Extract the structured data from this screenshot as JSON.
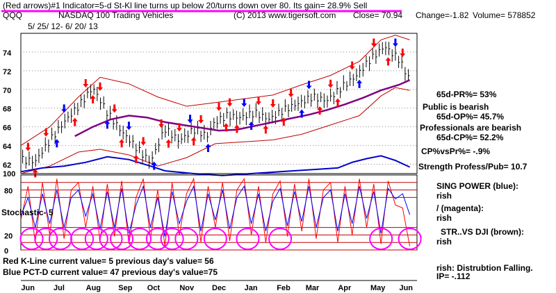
{
  "header": {
    "banner": "(Red arrows)#1  Indicator=5-d St-Kl line turns up below 20/turns down over 80.  Its gain= 28.9% Sell",
    "symbol": "QQQ",
    "name": "NASDAQ 100 Trading Vehicles",
    "copyright": "(C) 2013 www.tigersoft.com",
    "close": "Close=   70.94",
    "change": "Change=-1.82",
    "volume": "Volume=  578852",
    "date_range": "5/ 25/ 12-  6/ 20/ 13"
  },
  "side_notes": [
    "65d-PR%= 53%",
    "Public is bearish",
    "65d-OP%= 45.7%",
    "Professionals are bearish",
    "65d-CP%= 52.2%",
    "CP%vsPr%= -.9%",
    "Strength Profess/Pub= 10.7",
    "SING POWER (blue):",
    "rish",
    "/ (magenta):",
    "rish",
    "STR..VS DJI (brown):",
    "rish",
    "rish:  Distrubtion Falling.",
    "IP= -.112"
  ],
  "stochastic_label": "Stochastic- 5",
  "bottom_notes": [
    "Red K-Line current value= 5  previous day's value= 56",
    "Blue PCT-D current value= 47  previous day's value=75"
  ],
  "chart_data": [
    {
      "type": "candlestick",
      "yticks": [
        62,
        64,
        66,
        68,
        70,
        72,
        74
      ],
      "ylim": [
        61,
        76
      ],
      "series": [
        {
          "name": "",
          "color": "#000000",
          "x": [
            0,
            4,
            8,
            12,
            16,
            20,
            24,
            28,
            32,
            36,
            40,
            44,
            48,
            52
          ],
          "values": [
            62.5,
            62.3,
            64.5,
            66.5,
            68.2,
            70.2,
            67.5,
            65.5,
            63.8,
            62.2,
            65.8,
            64.5,
            65.7,
            65.0
          ]
        },
        {
          "name": "",
          "color": "#000000",
          "x": [
            53,
            57,
            61,
            65,
            69,
            73,
            77,
            81,
            85,
            89,
            93,
            97,
            101,
            105,
            108
          ],
          "values": [
            66.2,
            67.2,
            67.0,
            67.5,
            66.8,
            67.8,
            68.5,
            69.2,
            68.8,
            70.2,
            71.4,
            73.2,
            74.6,
            73.2,
            71.0
          ]
        }
      ],
      "ma_series": [
        {
          "name": "",
          "color": "#800080",
          "x": [
            15,
            20,
            25,
            30,
            35,
            40,
            45,
            50,
            55,
            60,
            65,
            70,
            75,
            80,
            85,
            90,
            95,
            100,
            105,
            108
          ],
          "values": [
            65.0,
            66.0,
            66.8,
            67.2,
            67.0,
            66.5,
            66.2,
            65.9,
            65.6,
            65.7,
            66.1,
            66.5,
            66.9,
            67.3,
            67.8,
            68.4,
            69.1,
            69.9,
            70.5,
            71.0
          ]
        },
        {
          "name": "",
          "color": "#c00000",
          "x": [
            0,
            8,
            16,
            22,
            30,
            38,
            46,
            54,
            62,
            70,
            78,
            86,
            94,
            100,
            104,
            108
          ],
          "values": [
            64.0,
            66.0,
            69.2,
            71.3,
            70.6,
            69.2,
            68.2,
            68.6,
            69.0,
            69.4,
            70.5,
            71.5,
            73.0,
            75.3,
            75.8,
            75.3
          ]
        },
        {
          "name": "",
          "color": "#c00000",
          "x": [
            0,
            8,
            16,
            22,
            30,
            38,
            46,
            54,
            62,
            70,
            78,
            86,
            94,
            100,
            104,
            108
          ],
          "values": [
            61.0,
            61.8,
            63.3,
            63.6,
            63.0,
            61.8,
            62.7,
            64.2,
            64.4,
            64.6,
            65.2,
            66.2,
            67.2,
            69.3,
            70.2,
            69.9
          ]
        },
        {
          "name": "",
          "color": "#0000cc",
          "x": [
            0,
            6,
            12,
            18,
            24,
            30,
            36,
            40,
            48,
            56,
            64,
            72,
            80,
            88,
            92,
            96,
            100,
            104,
            108
          ],
          "values": [
            61.2,
            61.6,
            61.8,
            62.2,
            62.8,
            62.5,
            61.8,
            61.3,
            61.0,
            60.8,
            61.0,
            61.2,
            61.4,
            61.6,
            62.2,
            62.6,
            62.9,
            62.4,
            61.7
          ]
        }
      ],
      "signals_up": [
        4,
        10,
        15,
        20,
        24,
        28,
        32,
        37,
        41,
        48,
        52,
        57,
        60,
        64,
        68,
        73,
        78,
        83,
        88,
        94,
        102
      ],
      "signals_down": [
        2,
        7,
        12,
        18,
        22,
        26,
        30,
        34,
        39,
        44,
        47,
        50,
        55,
        58,
        62,
        66,
        70,
        75,
        80,
        86,
        92,
        98,
        104,
        106
      ]
    },
    {
      "type": "line",
      "yticks": [
        0,
        20,
        80
      ],
      "ylim": [
        0,
        100
      ],
      "top_label": "100",
      "series": [
        {
          "name": "Red K-Line",
          "color": "#ff0000",
          "x": [
            0,
            2,
            4,
            6,
            8,
            10,
            12,
            14,
            16,
            18,
            20,
            22,
            24,
            26,
            28,
            30,
            32,
            34,
            36,
            38,
            40,
            42,
            44,
            46,
            48,
            50,
            52,
            54,
            56,
            58,
            60,
            62,
            64,
            66,
            68,
            70,
            72,
            74,
            76,
            78,
            80,
            82,
            84,
            86,
            88,
            90,
            92,
            94,
            96,
            98,
            100,
            102,
            104,
            106,
            108
          ],
          "values": [
            40,
            85,
            10,
            90,
            20,
            95,
            15,
            80,
            90,
            30,
            85,
            12,
            88,
            18,
            92,
            8,
            70,
            95,
            15,
            80,
            5,
            90,
            20,
            75,
            95,
            10,
            85,
            30,
            90,
            12,
            80,
            95,
            20,
            85,
            10,
            75,
            92,
            18,
            88,
            25,
            95,
            15,
            80,
            90,
            10,
            85,
            20,
            95,
            30,
            88,
            8,
            92,
            60,
            56,
            5
          ]
        },
        {
          "name": "Blue PCT-D",
          "color": "#0000ff",
          "x": [
            0,
            2,
            4,
            6,
            8,
            10,
            12,
            14,
            16,
            18,
            20,
            22,
            24,
            26,
            28,
            30,
            32,
            34,
            36,
            38,
            40,
            42,
            44,
            46,
            48,
            50,
            52,
            54,
            56,
            58,
            60,
            62,
            64,
            66,
            68,
            70,
            72,
            74,
            76,
            78,
            80,
            82,
            84,
            86,
            88,
            90,
            92,
            94,
            96,
            98,
            100,
            102,
            104,
            106,
            108
          ],
          "values": [
            45,
            70,
            30,
            75,
            35,
            80,
            30,
            70,
            80,
            45,
            75,
            28,
            78,
            30,
            82,
            22,
            60,
            85,
            30,
            70,
            18,
            78,
            35,
            65,
            85,
            25,
            75,
            40,
            80,
            28,
            70,
            85,
            35,
            75,
            25,
            65,
            82,
            32,
            78,
            38,
            85,
            30,
            70,
            80,
            25,
            75,
            35,
            85,
            42,
            78,
            22,
            82,
            68,
            75,
            47
          ]
        }
      ],
      "circles": [
        3,
        7,
        11,
        17,
        21,
        25,
        28,
        33,
        38,
        42,
        46,
        54,
        63,
        72,
        100,
        108
      ]
    }
  ],
  "xaxis": {
    "labels": [
      "Jun",
      "Jul",
      "Aug",
      "Sep",
      "Oct",
      "Nov",
      "Dec",
      "Jan",
      "Feb",
      "Mar",
      "Apr",
      "May",
      "Jun"
    ],
    "positions": [
      2,
      11,
      20,
      29,
      37,
      46,
      55,
      64,
      73,
      81,
      90,
      99,
      107
    ],
    "xlim": [
      0,
      110
    ]
  }
}
